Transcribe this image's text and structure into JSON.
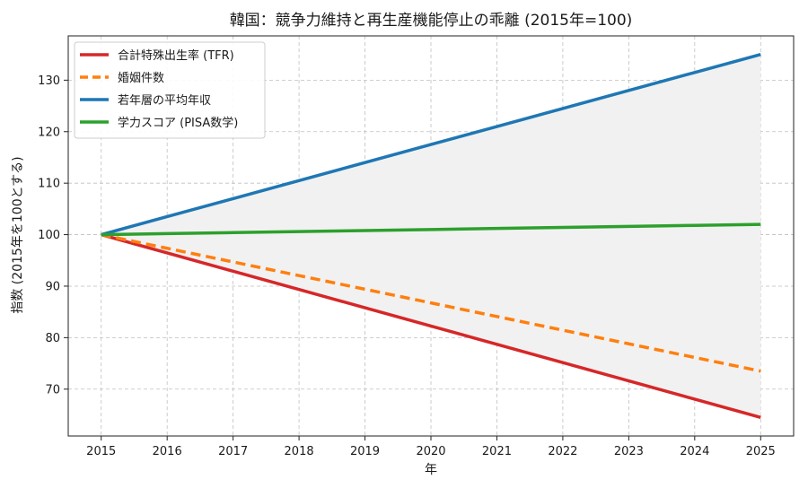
{
  "chart_data": {
    "type": "line",
    "title": "韓国：競争力維持と再生産機能停止の乖離 (2015年=100)",
    "xlabel": "年",
    "ylabel": "指数 (2015年を100とする)",
    "x": [
      2015,
      2016,
      2017,
      2018,
      2019,
      2020,
      2021,
      2022,
      2023,
      2024,
      2025
    ],
    "xlim": [
      2014.5,
      2025.5
    ],
    "ylim": [
      60.9,
      138.6
    ],
    "yticks": [
      70,
      80,
      90,
      100,
      110,
      120,
      130
    ],
    "grid": true,
    "legend_position": "top-left",
    "shaded_band": {
      "between": [
        "若年層の平均年収",
        "合計特殊出生率 (TFR)"
      ],
      "color": "#f1f1f1"
    },
    "series": [
      {
        "name": "合計特殊出生率 (TFR)",
        "color": "#d62728",
        "style": "solid",
        "values": [
          100,
          96.45,
          92.9,
          89.35,
          85.8,
          82.25,
          78.7,
          75.15,
          71.6,
          68.05,
          64.5
        ]
      },
      {
        "name": "婚姻件数",
        "color": "#ff7f0e",
        "style": "dashed",
        "values": [
          100,
          97.35,
          94.7,
          92.05,
          89.4,
          86.75,
          84.1,
          81.45,
          78.8,
          76.15,
          73.5
        ]
      },
      {
        "name": "若年層の平均年収",
        "color": "#1f77b4",
        "style": "solid",
        "values": [
          100,
          103.5,
          107,
          110.5,
          114,
          117.5,
          121,
          124.5,
          128,
          131.5,
          135
        ]
      },
      {
        "name": "学力スコア (PISA数学)",
        "color": "#2ca02c",
        "style": "solid",
        "values": [
          100,
          100.2,
          100.4,
          100.6,
          100.8,
          101,
          101.2,
          101.4,
          101.6,
          101.8,
          102
        ]
      }
    ]
  }
}
